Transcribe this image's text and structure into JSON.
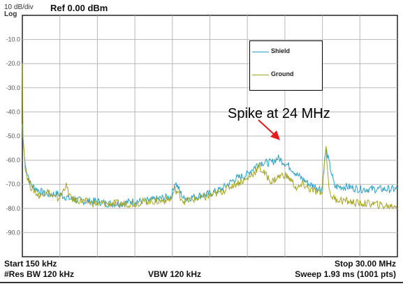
{
  "header": {
    "scale": "10 dB/div",
    "ref_level": "Ref 0.00 dBm",
    "scale_type": "Log"
  },
  "footer": {
    "start": "Start 150 kHz",
    "res_bw": "#Res BW 120 kHz",
    "vbw": "VBW 120 kHz",
    "stop": "Stop 30.00 MHz",
    "sweep": "Sweep  1.93 ms (1001 pts)"
  },
  "annotation": "Spike at 24 MHz",
  "colors": {
    "shield": "#2aa0c4",
    "ground": "#a5a520",
    "arrow": "#e8191a",
    "grid": "#b8b8b8"
  },
  "chart_data": {
    "type": "line",
    "xlim": [
      0.15,
      30.0
    ],
    "ylim": [
      -100,
      0
    ],
    "y_tick_labels": [
      "-10.0",
      "-20.0",
      "-30.0",
      "-40.0",
      "-50.0",
      "-60.0",
      "-70.0",
      "-80.0",
      "-90.0"
    ],
    "y_ticks": [
      -10,
      -20,
      -30,
      -40,
      -50,
      -60,
      -70,
      -80,
      -90
    ],
    "grid": true,
    "legend_position": "top-right",
    "series": [
      {
        "name": "Shield",
        "x": [
          0.15,
          0.2,
          0.4,
          0.6,
          0.8,
          1.0,
          1.3,
          1.6,
          2.0,
          2.5,
          3.0,
          4.0,
          5.0,
          6.0,
          7.0,
          8.0,
          9.0,
          10.0,
          11.0,
          12.0,
          12.3,
          13.0,
          14.0,
          15.0,
          16.0,
          17.0,
          18.0,
          19.0,
          20.0,
          20.5,
          21.0,
          21.5,
          22.0,
          22.5,
          23.0,
          23.5,
          24.0,
          24.3,
          25.0,
          26.0,
          27.0,
          28.0,
          29.0,
          30.0
        ],
        "values": [
          -45,
          -52,
          -63,
          -66,
          -70,
          -71,
          -72,
          -73,
          -74,
          -74,
          -74,
          -76,
          -77,
          -77,
          -78,
          -78,
          -77,
          -77,
          -76,
          -75,
          -69,
          -76,
          -75,
          -74,
          -72,
          -68,
          -66,
          -61,
          -61,
          -59,
          -61,
          -63,
          -66,
          -68,
          -70,
          -71,
          -72,
          -55,
          -71,
          -71,
          -72,
          -72,
          -72,
          -72
        ]
      },
      {
        "name": "Ground",
        "x": [
          0.15,
          0.2,
          0.4,
          0.6,
          0.8,
          1.0,
          1.3,
          1.6,
          2.0,
          2.5,
          3.0,
          3.3,
          3.6,
          4.0,
          5.0,
          6.0,
          7.0,
          8.0,
          9.0,
          10.0,
          11.0,
          12.0,
          12.3,
          13.0,
          14.0,
          15.0,
          16.0,
          17.0,
          18.0,
          19.0,
          19.5,
          20.0,
          20.5,
          21.0,
          21.5,
          22.0,
          22.5,
          23.0,
          23.5,
          24.0,
          24.3,
          24.6,
          25.0,
          26.0,
          27.0,
          28.0,
          29.0,
          30.0
        ],
        "values": [
          -20,
          -50,
          -64,
          -68,
          -71,
          -72,
          -74,
          -75,
          -72,
          -75,
          -76,
          -74,
          -70,
          -76,
          -77,
          -78,
          -78,
          -78,
          -78,
          -77,
          -77,
          -76,
          -72,
          -77,
          -76,
          -75,
          -73,
          -70,
          -68,
          -63,
          -66,
          -69,
          -67,
          -66,
          -68,
          -72,
          -70,
          -72,
          -73,
          -74,
          -54,
          -74,
          -76,
          -77,
          -78,
          -78,
          -79,
          -79
        ]
      }
    ]
  }
}
